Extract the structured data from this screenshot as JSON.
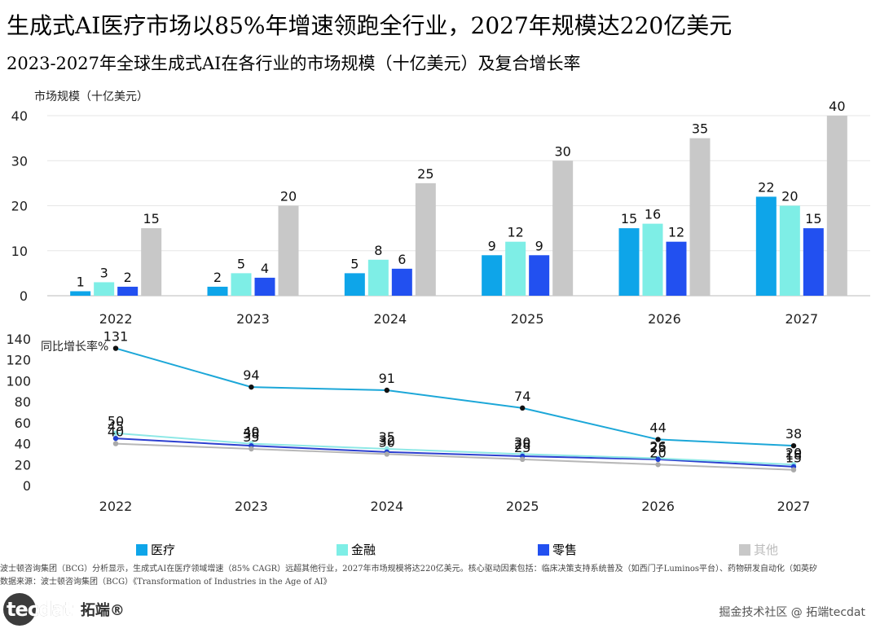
{
  "title": "生成式AI医疗市场以85%年增速领跑全行业，2027年规模达220亿美元",
  "subtitle": "2023-2027年全球生成式AI在各行业的市场规模（十亿美元）及复合增长率",
  "legend": [
    "医疗",
    "金融",
    "零售",
    "其他"
  ],
  "colors": {
    "医疗": "#0ea5e9",
    "金融": "#7eeee6",
    "零售": "#2250f0",
    "其他": "#c8c8c8",
    "line_医疗": "#1ca7d8",
    "line_金融": "#8ee8e6",
    "line_零售": "#2c3fd0",
    "line_其他": "#b8b8b8"
  },
  "note": "波士顿咨询集团（BCG）分析显示，生成式AI在医疗领域增速（85% CAGR）远超其他行业，2027年市场规模将达220亿美元。核心驱动因素包括：临床决策支持系统普及（如西门子Luminos平台）、药物研发自动化（如英矽",
  "source": "数据来源：波士顿咨询集团（BCG）《Transformation of Industries in the Age of AI》",
  "logo": {
    "mark": "tecdat",
    "cn": "拓端®"
  },
  "watermark": "掘金技术社区 @ 拓端tecdat",
  "chart_data": [
    {
      "type": "bar",
      "ylabel": "市场规模（十亿美元）",
      "categories": [
        "2022",
        "2023",
        "2024",
        "2025",
        "2026",
        "2027"
      ],
      "ylim": [
        0,
        40
      ],
      "yticks": [
        0,
        10,
        20,
        30,
        40
      ],
      "series": [
        {
          "name": "医疗",
          "values": [
            1,
            2,
            5,
            9,
            15,
            22
          ]
        },
        {
          "name": "金融",
          "values": [
            3,
            5,
            8,
            12,
            16,
            20
          ]
        },
        {
          "name": "零售",
          "values": [
            2,
            4,
            6,
            9,
            12,
            15
          ]
        },
        {
          "name": "其他",
          "values": [
            15,
            20,
            25,
            30,
            35,
            40
          ]
        }
      ]
    },
    {
      "type": "line",
      "ylabel": "同比增长率%",
      "categories": [
        "2022",
        "2023",
        "2024",
        "2025",
        "2026",
        "2027"
      ],
      "ylim": [
        0,
        140
      ],
      "yticks": [
        0,
        20,
        40,
        60,
        80,
        100,
        120,
        140
      ],
      "series": [
        {
          "name": "医疗",
          "values": [
            131,
            94,
            91,
            74,
            44,
            38
          ]
        },
        {
          "name": "金融",
          "values": [
            50,
            40,
            35,
            30,
            26,
            20
          ]
        },
        {
          "name": "零售",
          "values": [
            45,
            38,
            32,
            28,
            25,
            18
          ]
        },
        {
          "name": "其他",
          "values": [
            40,
            35,
            30,
            25,
            20,
            15
          ]
        }
      ]
    }
  ]
}
